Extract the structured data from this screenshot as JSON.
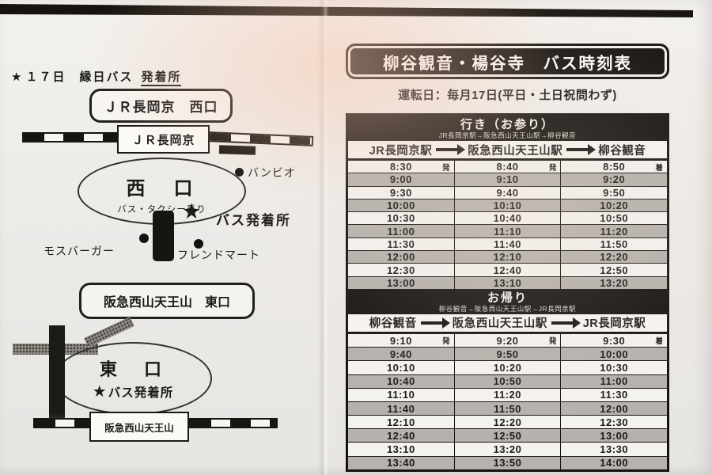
{
  "legend": {
    "star": "★",
    "text": "１７日　縁日バス",
    "underlined": "発着所"
  },
  "map_top": {
    "jr_exit_label": "ＪＲ長岡京　西口",
    "jr_station_label": "ＪＲ長岡京",
    "west_gate_title": "西　口",
    "west_gate_sub": "バス・タクシー乗り",
    "bambio": "バンビオ",
    "star": "★",
    "bus_stop_label": "バス発着所",
    "mos_burger": "モスバーガー",
    "friend_mart": "フレンドマート"
  },
  "map_bottom": {
    "hankyu_exit_label": "阪急西山天王山　東口",
    "east_gate_title": "東　口",
    "star": "★",
    "bus_stop_label": "バス発着所",
    "hankyu_station_label": "阪急西山天王山"
  },
  "timetable": {
    "title": "柳谷観音・楊谷寺　バス時刻表",
    "operating_days": "運転日：毎月17日(平日・土日祝問わず)",
    "sections": [
      {
        "heading": "行き（お参り）",
        "subheading": "JR長岡京駅→阪急西山天王山駅→柳谷観音",
        "stations": [
          "JR長岡京駅",
          "阪急西山天王山駅",
          "柳谷観音"
        ],
        "first_row_suffix": [
          "発",
          "発",
          "着"
        ],
        "rows": [
          [
            "8:30",
            "8:40",
            "8:50"
          ],
          [
            "9:00",
            "9:10",
            "9:20"
          ],
          [
            "9:30",
            "9:40",
            "9:50"
          ],
          [
            "10:00",
            "10:10",
            "10:20"
          ],
          [
            "10:30",
            "10:40",
            "10:50"
          ],
          [
            "11:00",
            "11:10",
            "11:20"
          ],
          [
            "11:30",
            "11:40",
            "11:50"
          ],
          [
            "12:00",
            "12:10",
            "12:20"
          ],
          [
            "12:30",
            "12:40",
            "12:50"
          ],
          [
            "13:00",
            "13:10",
            "13:20"
          ]
        ]
      },
      {
        "heading": "お帰り",
        "subheading": "柳谷観音→阪急西山天王山駅→JR長岡京駅",
        "stations": [
          "柳谷観音",
          "阪急西山天王山駅",
          "JR長岡京駅"
        ],
        "first_row_suffix": [
          "発",
          "発",
          "着"
        ],
        "rows": [
          [
            "9:10",
            "9:20",
            "9:30"
          ],
          [
            "9:40",
            "9:50",
            "10:00"
          ],
          [
            "10:10",
            "10:20",
            "10:30"
          ],
          [
            "10:40",
            "10:50",
            "11:00"
          ],
          [
            "11:10",
            "11:20",
            "11:30"
          ],
          [
            "11:40",
            "11:50",
            "12:00"
          ],
          [
            "12:10",
            "12:20",
            "12:30"
          ],
          [
            "12:40",
            "12:50",
            "13:00"
          ],
          [
            "13:10",
            "13:20",
            "13:30"
          ],
          [
            "13:40",
            "13:50",
            "14:00"
          ]
        ]
      }
    ]
  },
  "colors": {
    "ink": "#151310",
    "shaded_row": "#b5b1ad",
    "paper": "#f3f1ee"
  }
}
